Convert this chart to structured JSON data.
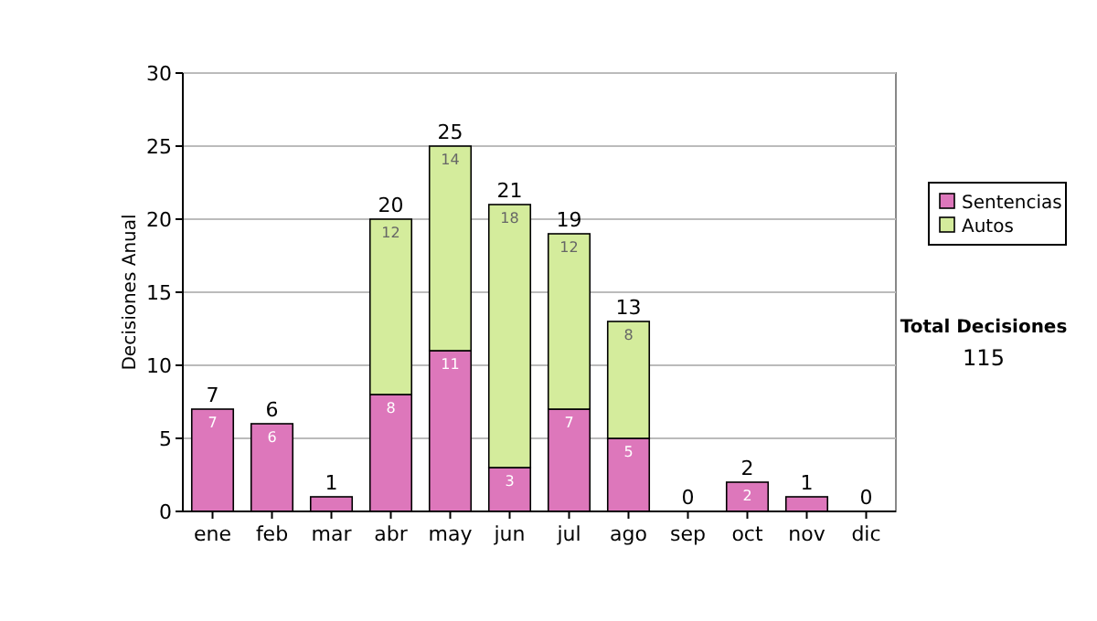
{
  "chart_data": {
    "type": "bar",
    "stacked": true,
    "ylabel": "Decisiones Anual",
    "categories": [
      "ene",
      "feb",
      "mar",
      "abr",
      "may",
      "jun",
      "jul",
      "ago",
      "sep",
      "oct",
      "nov",
      "dic"
    ],
    "series": [
      {
        "name": "Sentencias",
        "color": "#dd77bb",
        "values": [
          7,
          6,
          1,
          8,
          11,
          3,
          7,
          5,
          0,
          2,
          1,
          0
        ],
        "value_labels": [
          "7",
          "6",
          null,
          "8",
          "11",
          "3",
          "7",
          "5",
          null,
          "2",
          null,
          null
        ]
      },
      {
        "name": "Autos",
        "color": "#d4ec9c",
        "values": [
          0,
          0,
          0,
          12,
          14,
          18,
          12,
          8,
          0,
          0,
          0,
          0
        ],
        "value_labels": [
          null,
          null,
          null,
          "12",
          "14",
          "18",
          "12",
          "8",
          null,
          null,
          null,
          null
        ]
      }
    ],
    "totals": [
      "7",
      "6",
      "1",
      "20",
      "25",
      "21",
      "19",
      "13",
      "0",
      "2",
      "1",
      "0"
    ],
    "ylim": [
      0,
      30
    ],
    "yticks": [
      0,
      5,
      10,
      15,
      20,
      25,
      30
    ],
    "grid": "y",
    "legend": "right",
    "annotations": [
      "Total Decisiones",
      "115"
    ]
  }
}
